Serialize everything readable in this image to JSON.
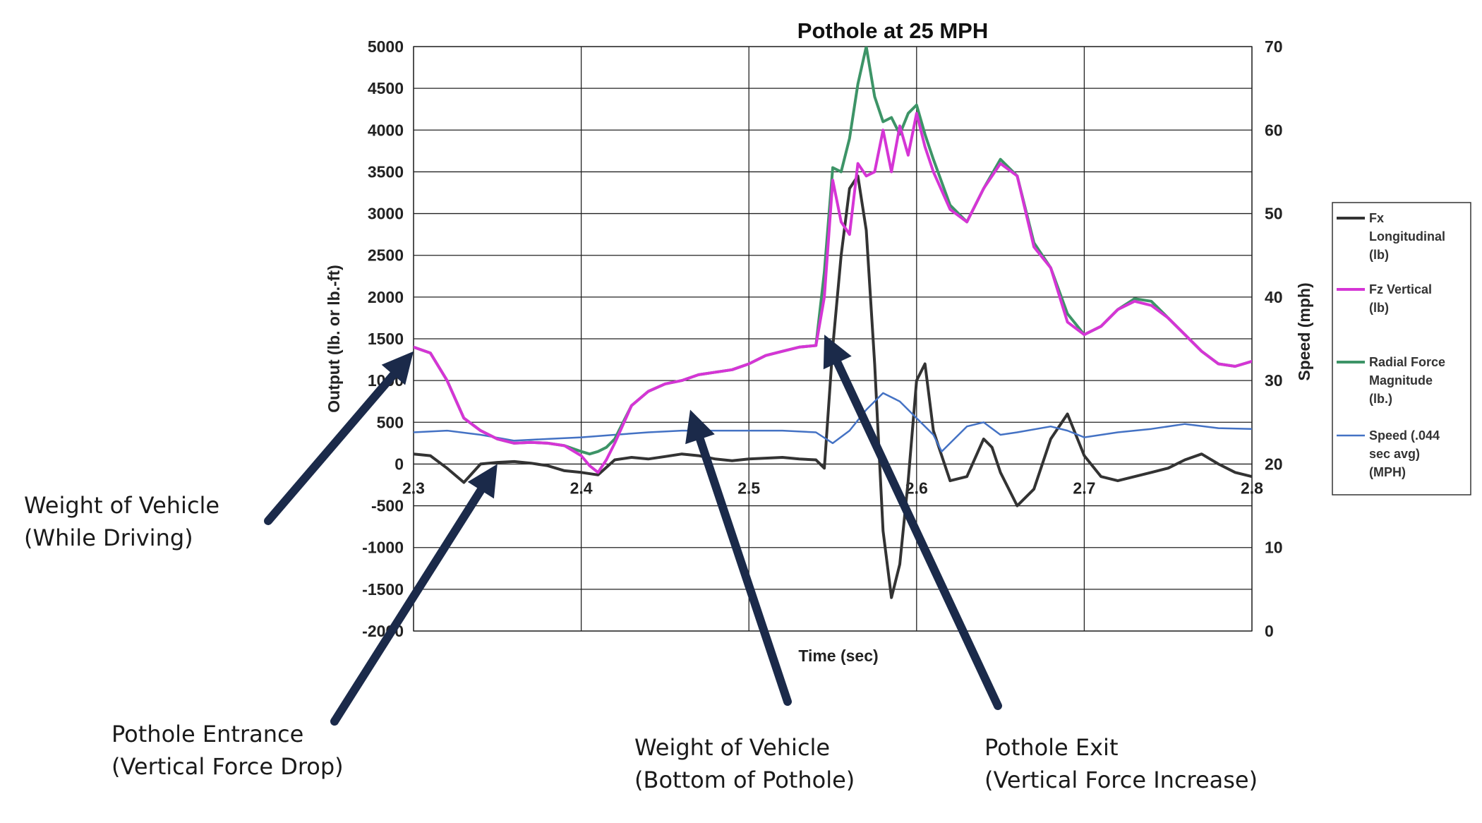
{
  "chart_data": {
    "type": "line",
    "title": "Pothole at 25 MPH",
    "xlabel": "Time (sec)",
    "ylabel": "Output (lb. or lb.-ft)",
    "y2label": "Speed (mph)",
    "xlim": [
      2.3,
      2.8
    ],
    "ylim": [
      -2000,
      5000
    ],
    "y2lim": [
      0,
      70
    ],
    "x_ticks": [
      "2.3",
      "2.4",
      "2.5",
      "2.6",
      "2.7",
      "2.8"
    ],
    "y_ticks": [
      "5000",
      "4500",
      "4000",
      "3500",
      "3000",
      "2500",
      "2000",
      "1500",
      "1000",
      "500",
      "0",
      "-500",
      "-1000",
      "-1500",
      "-2000"
    ],
    "y2_ticks": [
      "70",
      "60",
      "50",
      "40",
      "30",
      "20",
      "10",
      "0"
    ],
    "grid": true,
    "legend_position": "right",
    "series": [
      {
        "name": "Fx Longitudinal (lb)",
        "color": "#333333",
        "axis": "left",
        "x": [
          2.3,
          2.31,
          2.32,
          2.33,
          2.34,
          2.35,
          2.36,
          2.37,
          2.38,
          2.39,
          2.4,
          2.41,
          2.42,
          2.43,
          2.44,
          2.45,
          2.46,
          2.47,
          2.48,
          2.49,
          2.5,
          2.51,
          2.52,
          2.53,
          2.54,
          2.545,
          2.55,
          2.555,
          2.56,
          2.565,
          2.57,
          2.575,
          2.58,
          2.585,
          2.59,
          2.595,
          2.6,
          2.605,
          2.61,
          2.615,
          2.62,
          2.63,
          2.64,
          2.645,
          2.65,
          2.66,
          2.67,
          2.68,
          2.69,
          2.7,
          2.71,
          2.72,
          2.73,
          2.74,
          2.75,
          2.76,
          2.77,
          2.78,
          2.79,
          2.8
        ],
        "y": [
          120,
          100,
          -50,
          -220,
          0,
          20,
          30,
          10,
          -20,
          -80,
          -100,
          -130,
          50,
          80,
          60,
          90,
          120,
          100,
          60,
          40,
          60,
          70,
          80,
          60,
          50,
          -50,
          1400,
          2500,
          3300,
          3450,
          2800,
          1200,
          -800,
          -1600,
          -1200,
          -200,
          1000,
          1200,
          400,
          100,
          -200,
          -150,
          300,
          200,
          -100,
          -500,
          -300,
          300,
          600,
          100,
          -150,
          -200,
          -150,
          -100,
          -50,
          50,
          120,
          0,
          -100,
          -150
        ]
      },
      {
        "name": "Fz Vertical (lb)",
        "color": "#d535d5",
        "axis": "left",
        "x": [
          2.3,
          2.31,
          2.32,
          2.33,
          2.34,
          2.35,
          2.36,
          2.37,
          2.38,
          2.39,
          2.4,
          2.405,
          2.41,
          2.415,
          2.42,
          2.43,
          2.44,
          2.45,
          2.46,
          2.47,
          2.48,
          2.49,
          2.5,
          2.51,
          2.52,
          2.53,
          2.54,
          2.545,
          2.55,
          2.555,
          2.56,
          2.565,
          2.57,
          2.575,
          2.58,
          2.585,
          2.59,
          2.595,
          2.6,
          2.605,
          2.61,
          2.62,
          2.63,
          2.64,
          2.65,
          2.66,
          2.67,
          2.68,
          2.69,
          2.7,
          2.71,
          2.72,
          2.73,
          2.74,
          2.75,
          2.76,
          2.77,
          2.78,
          2.79,
          2.8
        ],
        "y": [
          1400,
          1330,
          1000,
          550,
          400,
          300,
          250,
          260,
          250,
          220,
          100,
          -20,
          -100,
          50,
          250,
          700,
          870,
          960,
          1000,
          1070,
          1100,
          1130,
          1200,
          1300,
          1350,
          1400,
          1420,
          2000,
          3400,
          2900,
          2750,
          3600,
          3450,
          3500,
          4000,
          3500,
          4050,
          3700,
          4200,
          3800,
          3500,
          3050,
          2900,
          3300,
          3600,
          3450,
          2600,
          2350,
          1700,
          1550,
          1650,
          1850,
          1950,
          1900,
          1750,
          1550,
          1350,
          1200,
          1170,
          1230
        ]
      },
      {
        "name": "Radial Force Magnitude (lb.)",
        "color": "#3d9467",
        "axis": "left",
        "x": [
          2.3,
          2.31,
          2.32,
          2.33,
          2.34,
          2.35,
          2.36,
          2.37,
          2.38,
          2.39,
          2.4,
          2.405,
          2.41,
          2.415,
          2.42,
          2.43,
          2.44,
          2.45,
          2.46,
          2.47,
          2.48,
          2.49,
          2.5,
          2.51,
          2.52,
          2.53,
          2.54,
          2.545,
          2.55,
          2.555,
          2.56,
          2.565,
          2.57,
          2.575,
          2.58,
          2.585,
          2.59,
          2.595,
          2.6,
          2.605,
          2.61,
          2.62,
          2.63,
          2.64,
          2.65,
          2.66,
          2.67,
          2.68,
          2.69,
          2.7,
          2.71,
          2.72,
          2.73,
          2.74,
          2.75,
          2.76,
          2.77,
          2.78,
          2.79,
          2.8
        ],
        "y": [
          1400,
          1330,
          1000,
          550,
          400,
          300,
          250,
          260,
          250,
          220,
          150,
          120,
          150,
          200,
          300,
          700,
          870,
          960,
          1000,
          1070,
          1100,
          1130,
          1200,
          1300,
          1350,
          1400,
          1420,
          2300,
          3550,
          3500,
          3900,
          4550,
          5000,
          4400,
          4100,
          4150,
          3950,
          4200,
          4300,
          3950,
          3650,
          3100,
          2900,
          3300,
          3650,
          3450,
          2650,
          2350,
          1800,
          1550,
          1650,
          1850,
          1980,
          1950,
          1750,
          1550,
          1350,
          1200,
          1170,
          1230
        ]
      },
      {
        "name": "Speed (.044 sec avg) (MPH)",
        "color": "#4472c4",
        "axis": "right",
        "x": [
          2.3,
          2.32,
          2.34,
          2.36,
          2.38,
          2.4,
          2.42,
          2.44,
          2.46,
          2.48,
          2.5,
          2.52,
          2.54,
          2.55,
          2.56,
          2.57,
          2.58,
          2.59,
          2.6,
          2.61,
          2.615,
          2.62,
          2.63,
          2.64,
          2.65,
          2.66,
          2.68,
          2.69,
          2.7,
          2.72,
          2.74,
          2.76,
          2.78,
          2.8
        ],
        "y": [
          23.8,
          24,
          23.5,
          22.8,
          23,
          23.2,
          23.5,
          23.8,
          24,
          24,
          24,
          24,
          23.8,
          22.5,
          24,
          26.5,
          28.5,
          27.5,
          25.5,
          23.5,
          21.5,
          22.5,
          24.5,
          25,
          23.5,
          23.8,
          24.5,
          24,
          23.2,
          23.8,
          24.2,
          24.8,
          24.3,
          24.2
        ]
      }
    ],
    "annotations": [
      {
        "line1": "Weight of Vehicle",
        "line2": "(While Driving)",
        "target": [
          2.3,
          1350
        ]
      },
      {
        "line1": "Pothole Entrance",
        "line2": "(Vertical Force Drop)",
        "target": [
          2.35,
          0
        ]
      },
      {
        "line1": "Weight of Vehicle",
        "line2": "(Bottom of Pothole)",
        "target": [
          2.465,
          650
        ]
      },
      {
        "line1": "Pothole Exit",
        "line2": "(Vertical Force Increase)",
        "target": [
          2.545,
          1550
        ]
      }
    ]
  }
}
